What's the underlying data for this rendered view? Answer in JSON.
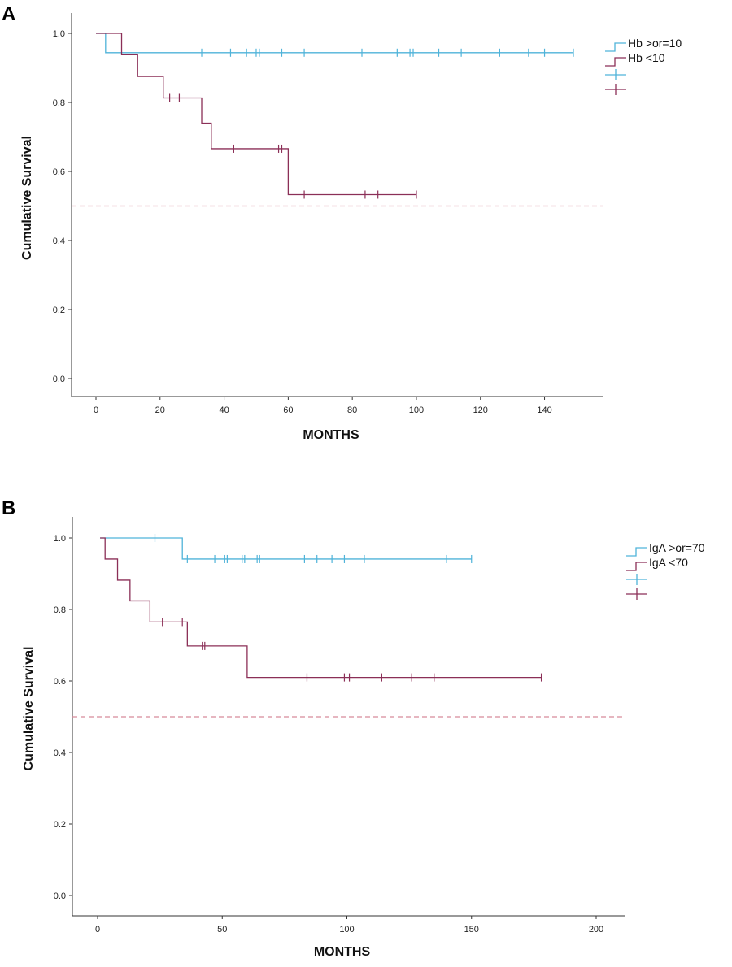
{
  "colors": {
    "high": "#4fb3d9",
    "low": "#8b2f57",
    "ref": "#d88a9a",
    "axis": "#333333"
  },
  "chart_data": [
    {
      "panel": "A",
      "type": "line",
      "subtype": "kaplan-meier",
      "xlabel": "MONTHS",
      "ylabel": "Cumulative Survival",
      "xlim": [
        0,
        155
      ],
      "ylim": [
        0,
        1.0
      ],
      "xticks": [
        0,
        20,
        40,
        60,
        80,
        100,
        120,
        140
      ],
      "yticks": [
        0.0,
        0.2,
        0.4,
        0.6,
        0.8,
        1.0
      ],
      "yticklabels": [
        "0.0",
        "0.2",
        "0.4",
        "0.6",
        "0.8",
        "1.0"
      ],
      "reference_line": 0.5,
      "legend": [
        "Hb >or=10",
        "Hb <10",
        "",
        ""
      ],
      "series": [
        {
          "name": "Hb >or=10",
          "color_key": "high",
          "steps": [
            [
              0,
              1.0
            ],
            [
              3,
              0.944
            ],
            [
              149,
              0.944
            ]
          ],
          "censors": [
            [
              33,
              0.944
            ],
            [
              42,
              0.944
            ],
            [
              47,
              0.944
            ],
            [
              50,
              0.944
            ],
            [
              51,
              0.944
            ],
            [
              58,
              0.944
            ],
            [
              65,
              0.944
            ],
            [
              83,
              0.944
            ],
            [
              94,
              0.944
            ],
            [
              98,
              0.944
            ],
            [
              99,
              0.944
            ],
            [
              107,
              0.944
            ],
            [
              114,
              0.944
            ],
            [
              126,
              0.944
            ],
            [
              135,
              0.944
            ],
            [
              140,
              0.944
            ],
            [
              149,
              0.944
            ]
          ]
        },
        {
          "name": "Hb <10",
          "color_key": "low",
          "steps": [
            [
              0,
              1.0
            ],
            [
              8,
              0.938
            ],
            [
              13,
              0.875
            ],
            [
              21,
              0.813
            ],
            [
              33,
              0.74
            ],
            [
              36,
              0.666
            ],
            [
              60,
              0.533
            ],
            [
              100,
              0.533
            ]
          ],
          "censors": [
            [
              23,
              0.813
            ],
            [
              26,
              0.813
            ],
            [
              43,
              0.666
            ],
            [
              57,
              0.666
            ],
            [
              58,
              0.666
            ],
            [
              65,
              0.533
            ],
            [
              84,
              0.533
            ],
            [
              88,
              0.533
            ],
            [
              100,
              0.533
            ]
          ]
        }
      ]
    },
    {
      "panel": "B",
      "type": "line",
      "subtype": "kaplan-meier",
      "xlabel": "MONTHS",
      "ylabel": "Cumulative Survival",
      "xlim": [
        -10,
        210
      ],
      "ylim": [
        0,
        1.0
      ],
      "xticks": [
        0,
        50,
        100,
        150,
        200
      ],
      "yticks": [
        0.0,
        0.2,
        0.4,
        0.6,
        0.8,
        1.0
      ],
      "yticklabels": [
        "0.0",
        "0.2",
        "0.4",
        "0.6",
        "0.8",
        "1.0"
      ],
      "reference_line": 0.5,
      "legend": [
        "IgA >or=70",
        "IgA <70",
        "",
        ""
      ],
      "series": [
        {
          "name": "IgA >or=70",
          "color_key": "high",
          "steps": [
            [
              1,
              1.0
            ],
            [
              34,
              0.941
            ],
            [
              150,
              0.941
            ]
          ],
          "censors": [
            [
              23,
              1.0
            ],
            [
              36,
              0.941
            ],
            [
              47,
              0.941
            ],
            [
              51,
              0.941
            ],
            [
              52,
              0.941
            ],
            [
              58,
              0.941
            ],
            [
              59,
              0.941
            ],
            [
              64,
              0.941
            ],
            [
              65,
              0.941
            ],
            [
              83,
              0.941
            ],
            [
              88,
              0.941
            ],
            [
              94,
              0.941
            ],
            [
              99,
              0.941
            ],
            [
              107,
              0.941
            ],
            [
              140,
              0.941
            ],
            [
              150,
              0.941
            ]
          ]
        },
        {
          "name": "IgA <70",
          "color_key": "low",
          "steps": [
            [
              1,
              1.0
            ],
            [
              3,
              0.941
            ],
            [
              8,
              0.882
            ],
            [
              13,
              0.824
            ],
            [
              21,
              0.765
            ],
            [
              36,
              0.698
            ],
            [
              60,
              0.61
            ],
            [
              178,
              0.61
            ]
          ],
          "censors": [
            [
              26,
              0.765
            ],
            [
              34,
              0.765
            ],
            [
              42,
              0.698
            ],
            [
              43,
              0.698
            ],
            [
              84,
              0.61
            ],
            [
              99,
              0.61
            ],
            [
              101,
              0.61
            ],
            [
              114,
              0.61
            ],
            [
              126,
              0.61
            ],
            [
              135,
              0.61
            ],
            [
              178,
              0.61
            ]
          ]
        }
      ]
    }
  ]
}
